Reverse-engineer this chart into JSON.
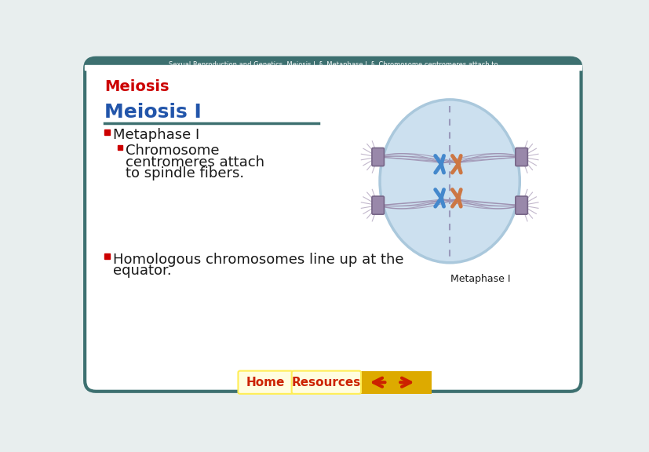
{
  "bg_color": "#e8eeee",
  "card_bg": "#ffffff",
  "card_border_color": "#3d7070",
  "top_bar_text": "Sexual Reproduction and Genetics  Meiosis I  §  Metaphase I  §  Chromosome centromeres attach to",
  "top_bar_bg": "#3d7070",
  "section_label": "Meiosis",
  "section_label_color": "#cc0000",
  "heading": "Meiosis I",
  "heading_color": "#2255aa",
  "heading_underline_color": "#3d7070",
  "bullet1": "Metaphase I",
  "sub_bullet1_line1": "Chromosome",
  "sub_bullet1_line2": "centromeres attach",
  "sub_bullet1_line3": "to spindle fibers.",
  "sub_bullet2_line1": "Homologous chromosomes line up at the",
  "sub_bullet2_line2": "equator.",
  "bullet_color": "#cc0000",
  "text_color": "#1a1a1a",
  "diagram_label": "Metaphase I",
  "cell_fill": "#cce0ef",
  "cell_border": "#aac8dc",
  "spindle_color": "#9988aa",
  "chr_blue": "#4488cc",
  "chr_orange": "#cc7744",
  "centromere_fill": "#9988aa",
  "centromere_border": "#776688",
  "dashed_color": "#9999bb",
  "nav_outer_bg": "#ddaa00",
  "nav_btn_bg": "#ffcc00",
  "nav_btn_border": "#ffdd44",
  "nav_text_color": "#cc2200",
  "home_text": "Home",
  "resources_text": "Resources"
}
